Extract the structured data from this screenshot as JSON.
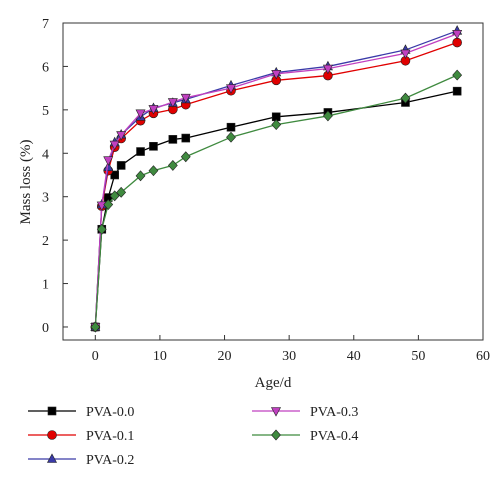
{
  "chart_data": {
    "type": "line",
    "xlabel": "Age/d",
    "ylabel": "Mass loss (%)",
    "xlim": [
      -5,
      60
    ],
    "ylim": [
      -0.3,
      7
    ],
    "xticks": [
      0,
      10,
      20,
      30,
      40,
      50,
      60
    ],
    "yticks": [
      0,
      1,
      2,
      3,
      4,
      5,
      6,
      7
    ],
    "grid": false,
    "legend_position": "bottom",
    "series": [
      {
        "name": "PVA-0.0",
        "color": "#000000",
        "marker": "square",
        "x": [
          0,
          1,
          2,
          3,
          4,
          7,
          9,
          12,
          14,
          21,
          28,
          36,
          48,
          56
        ],
        "y": [
          0,
          2.25,
          2.98,
          3.5,
          3.72,
          4.04,
          4.16,
          4.32,
          4.35,
          4.6,
          4.84,
          4.94,
          5.17,
          5.43
        ]
      },
      {
        "name": "PVA-0.1",
        "color": "#e00000",
        "marker": "circle",
        "x": [
          0,
          1,
          2,
          3,
          4,
          7,
          9,
          12,
          14,
          21,
          28,
          36,
          48,
          56
        ],
        "y": [
          0,
          2.78,
          3.6,
          4.14,
          4.34,
          4.75,
          4.92,
          5.01,
          5.12,
          5.44,
          5.68,
          5.79,
          6.13,
          6.55
        ]
      },
      {
        "name": "PVA-0.2",
        "color": "#3a3aa8",
        "marker": "triangle-up",
        "x": [
          0,
          1,
          2,
          3,
          4,
          7,
          9,
          12,
          14,
          21,
          28,
          36,
          48,
          56
        ],
        "y": [
          0,
          2.82,
          3.68,
          4.25,
          4.43,
          4.84,
          5.04,
          5.16,
          5.24,
          5.56,
          5.86,
          6.0,
          6.38,
          6.82
        ]
      },
      {
        "name": "PVA-0.3",
        "color": "#c040c0",
        "marker": "triangle-down",
        "x": [
          0,
          1,
          2,
          3,
          4,
          7,
          9,
          12,
          14,
          21,
          28,
          36,
          48,
          56
        ],
        "y": [
          0,
          2.8,
          3.84,
          4.2,
          4.42,
          4.92,
          5.02,
          5.18,
          5.28,
          5.5,
          5.83,
          5.95,
          6.3,
          6.75
        ]
      },
      {
        "name": "PVA-0.4",
        "color": "#3f8a3f",
        "marker": "diamond",
        "x": [
          0,
          1,
          2,
          3,
          4,
          7,
          9,
          12,
          14,
          21,
          28,
          36,
          48,
          56
        ],
        "y": [
          0,
          2.25,
          2.82,
          3.02,
          3.1,
          3.48,
          3.6,
          3.72,
          3.92,
          4.37,
          4.66,
          4.86,
          5.27,
          5.8
        ]
      }
    ]
  }
}
